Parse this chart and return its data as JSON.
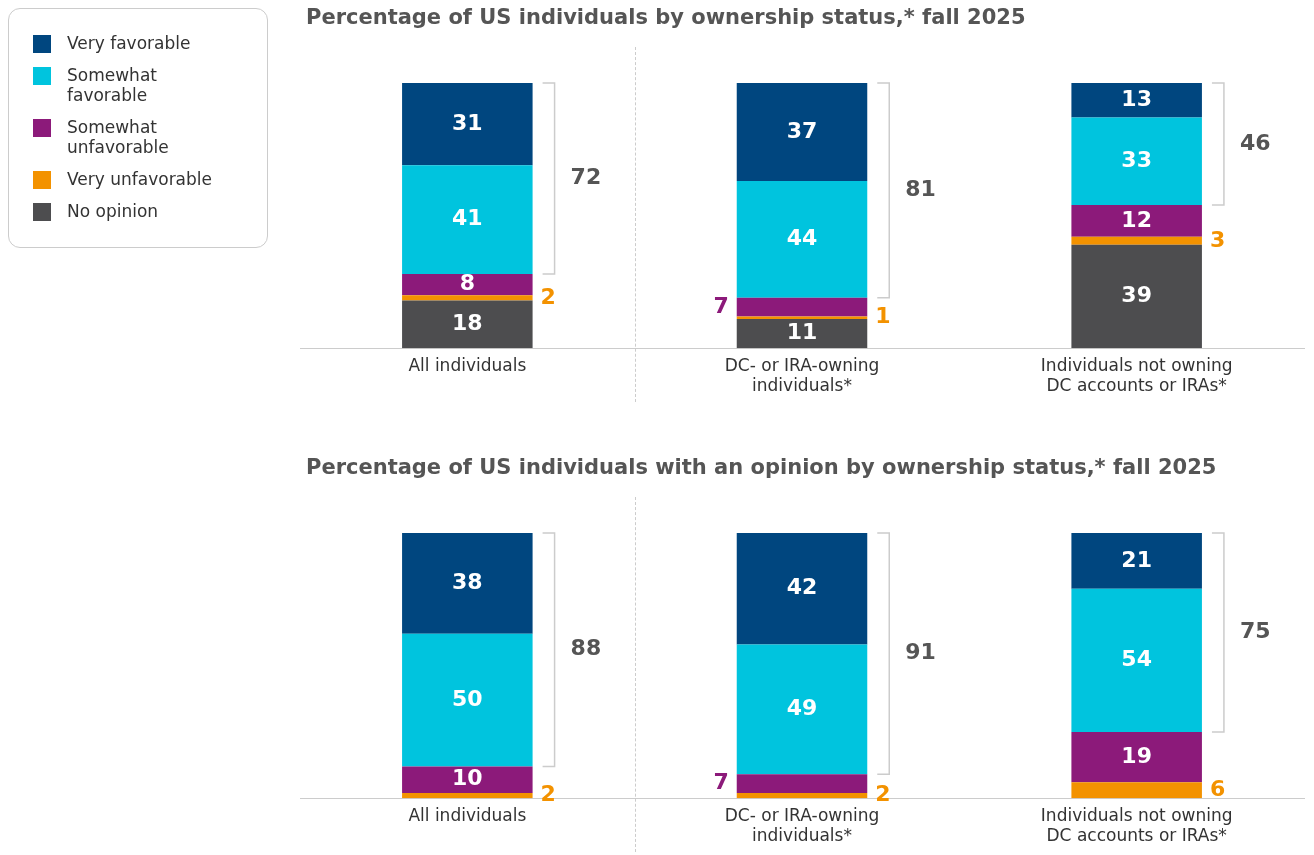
{
  "chart_data": [
    {
      "type": "bar",
      "title": "Percentage of US individuals by ownership status,* fall 2025",
      "categories": [
        "All individuals",
        "DC- or IRA-owning individuals*",
        "Individuals not owning DC accounts or IRAs*"
      ],
      "stacked": true,
      "data_labels": true,
      "tick_labels": "x",
      "grid": false,
      "legend": "left",
      "ylim": [
        0,
        100
      ],
      "series": [
        {
          "name": "No opinion",
          "color": "#4d4d4f",
          "values": [
            18,
            11,
            39
          ]
        },
        {
          "name": "Very unfavorable",
          "color": "#f39200",
          "values": [
            2,
            1,
            3
          ]
        },
        {
          "name": "Somewhat unfavorable",
          "color": "#8c1a7a",
          "values": [
            8,
            7,
            12
          ]
        },
        {
          "name": "Somewhat favorable",
          "color": "#00c4de",
          "values": [
            41,
            44,
            33
          ]
        },
        {
          "name": "Very favorable",
          "color": "#00467f",
          "values": [
            31,
            37,
            13
          ]
        }
      ],
      "annotations": [
        "72",
        "81",
        "46"
      ]
    },
    {
      "type": "bar",
      "title": "Percentage of US individuals with an opinion by ownership status,* fall 2025",
      "categories": [
        "All individuals",
        "DC- or IRA-owning individuals*",
        "Individuals not owning DC accounts or IRAs*"
      ],
      "stacked": true,
      "data_labels": true,
      "tick_labels": "x",
      "grid": false,
      "ylim": [
        0,
        100
      ],
      "series": [
        {
          "color": "#f39200",
          "values": [
            2,
            2,
            6
          ]
        },
        {
          "color": "#8c1a7a",
          "values": [
            10,
            7,
            19
          ]
        },
        {
          "color": "#00c4de",
          "values": [
            50,
            49,
            54
          ]
        },
        {
          "color": "#00467f",
          "values": [
            38,
            42,
            21
          ]
        }
      ],
      "annotations": [
        "88",
        "91",
        "75"
      ]
    }
  ]
}
